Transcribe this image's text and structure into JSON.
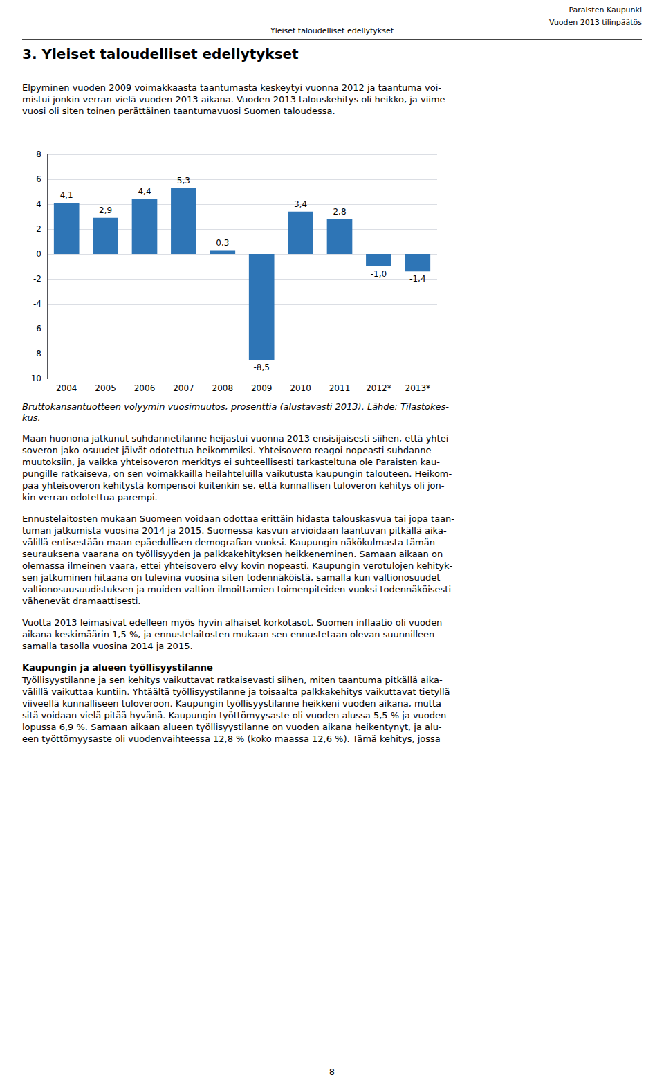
{
  "page": {
    "header_right_lines": [
      "Paraisten Kaupunki",
      "Vuoden 2013 tilinpäätös"
    ],
    "header_center": "Yleiset taloudelliset edellytykset",
    "section_title": "3. Yleiset taloudelliset edellytykset",
    "intro_lines": [
      "Elpyminen vuoden 2009 voimakkaasta taantumasta keskeytyi vuonna 2012 ja taantuma voi-",
      "mistui jonkin verran vielä vuoden 2013 aikana. Vuoden 2013 talouskehitys oli heikko, ja viime",
      "vuosi oli siten toinen perättäinen taantumavuosi Suomen taloudessa."
    ],
    "caption_lines": [
      "Bruttokansantuotteen volyymin vuosimuutos, prosenttia (alustavasti 2013). Lähde: Tilastokes-",
      "kus."
    ],
    "body_paragraphs": [
      [
        "Maan huonona jatkunut suhdannetilanne heijastui vuonna 2013 ensisijaisesti siihen, että yhtei-",
        "soveron jako-osuudet jäivät odotettua heikommiksi. Yhteisovero reagoi nopeasti suhdanne-",
        "muutoksiin, ja vaikka yhteisoveron merkitys ei suhteellisesti tarkasteltuna ole Paraisten kau-",
        "pungille ratkaiseva, on sen voimakkailla heilahteluilla vaikutusta kaupungin talouteen. Heikom-",
        "paa yhteisoveron kehitystä kompensoi kuitenkin se, että kunnallisen tuloveron kehitys oli jon-",
        "kin verran odotettua parempi."
      ],
      [
        "Ennustelaitosten mukaan Suomeen voidaan odottaa erittäin hidasta talouskasvua tai jopa taan-",
        "tuman jatkumista vuosina 2014 ja 2015. Suomessa kasvun arvioidaan laantuvan pitkällä aika-",
        "välillä entisestään maan epäedullisen demografian vuoksi. Kaupungin näkökulmasta tämän",
        "seurauksena vaarana on työllisyyden ja palkkakehityksen heikkeneminen. Samaan aikaan on",
        "olemassa ilmeinen vaara, ettei yhteisovero elvy kovin nopeasti. Kaupungin verotulojen kehityk-",
        "sen jatkuminen hitaana on tulevina vuosina siten todennäköistä, samalla kun valtionosuudet",
        "valtionosuusuudistuksen ja muiden valtion ilmoittamien toimenpiteiden vuoksi todennäköisesti",
        "vähenevät dramaattisesti."
      ],
      [
        "Vuotta 2013 leimasivat edelleen myös hyvin alhaiset korkotasot. Suomen inflaatio oli vuoden",
        "aikana keskimäärin 1,5 %, ja ennustelaitosten mukaan sen ennustetaan olevan suunnilleen",
        "samalla tasolla vuosina 2014 ja 2015."
      ]
    ],
    "section2_title": "Kaupungin ja alueen työllisyystilanne",
    "section2_text_lines": [
      "Työllisyystilanne ja sen kehitys vaikuttavat ratkaisevasti siihen, miten taantuma pitkällä aika-",
      "välillä vaikuttaa kuntiin. Yhtäältä työllisyystilanne ja toisaalta palkkakehitys vaikuttavat tietyllä",
      "viiveellä kunnalliseen tuloveroon. Kaupungin työllisyystilanne heikkeni vuoden aikana, mutta",
      "sitä voidaan vielä pitää hyvänä. Kaupungin työttömyysaste oli vuoden alussa 5,5 % ja vuoden",
      "lopussa 6,9 %. Samaan aikaan alueen työllisyystilanne on vuoden aikana heikentynyt, ja alu-",
      "een työttömyysaste oli vuodenvaihteessa 12,8 % (koko maassa 12,6 %). Tämä kehitys, jossa"
    ],
    "page_number": "8"
  },
  "chart_data": {
    "type": "bar",
    "categories": [
      "2004",
      "2005",
      "2006",
      "2007",
      "2008",
      "2009",
      "2010",
      "2011",
      "2012*",
      "2013*"
    ],
    "values": [
      4.1,
      2.9,
      4.4,
      5.3,
      0.3,
      -8.5,
      3.4,
      2.8,
      -1.0,
      -1.4
    ],
    "value_labels": [
      "4,1",
      "2,9",
      "4,4",
      "5,3",
      "0,3",
      "-8,5",
      "3,4",
      "2,8",
      "-1,0",
      "-1,4"
    ],
    "data_labels": true,
    "color": "#2e75b6",
    "ylim": [
      -10,
      8
    ],
    "yticks": [
      -10,
      -8,
      -6,
      -4,
      -2,
      0,
      2,
      4,
      6,
      8
    ],
    "grid": true
  }
}
